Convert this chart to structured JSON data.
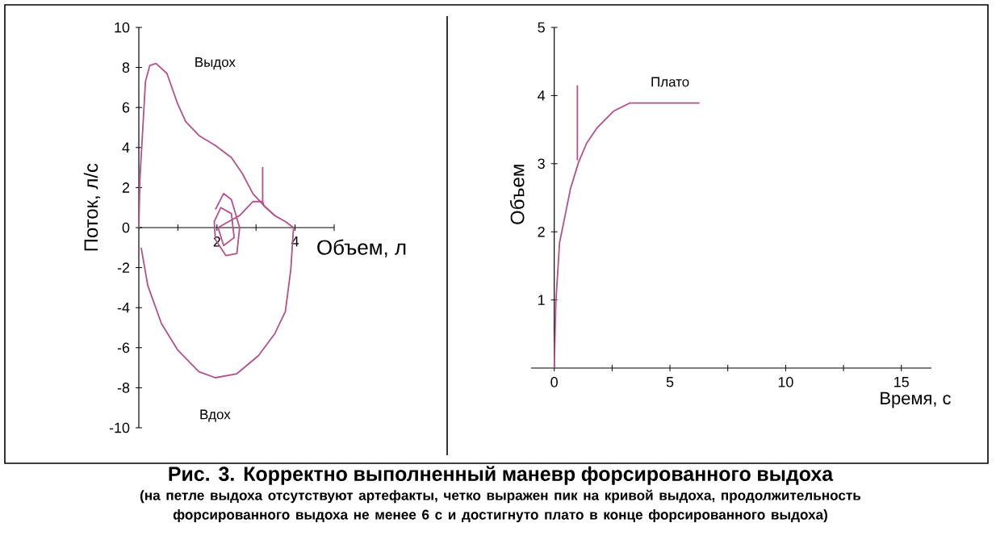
{
  "chart_data": [
    {
      "type": "line",
      "title": "Рис. 3. Корректно выполненный маневр форсированного выдоха",
      "subtitle": "(на петле выдоха отсутствуют артефакты, четко выражен пик на кривой выдоха, продолжительность форсированного выдоха не менее 6 с и достигнуто плато в конце форсированного выдоха)",
      "xlabel": "Объем, л",
      "ylabel": "Поток, л/с",
      "xlim": [
        0,
        5
      ],
      "ylim": [
        -10,
        10
      ],
      "xticks": [
        {
          "value": 1,
          "label": null
        },
        2,
        {
          "value": 3,
          "label": null
        },
        4,
        {
          "value": 5,
          "label": null
        }
      ],
      "yticks": [
        -10,
        -8,
        -6,
        -4,
        -2,
        0,
        2,
        4,
        6,
        8,
        10
      ],
      "annotations": [
        "Выдох",
        "Вдох"
      ],
      "series": [
        {
          "color": "#b4508c",
          "x": [
            0,
            0.03,
            0.17,
            0.28,
            0.44,
            0.72,
            0.99,
            1.2,
            1.54,
            1.96,
            2.37,
            2.65,
            2.92,
            3.2,
            3.48,
            3.75,
            3.96,
            3.89,
            3.75,
            3.48,
            3.06,
            2.51,
            1.96,
            1.54,
            0.99,
            0.58,
            0.23,
            0.06
          ],
          "values": [
            0,
            2.5,
            7.3,
            8.1,
            8.2,
            7.7,
            6.2,
            5.3,
            4.6,
            4.1,
            3.5,
            2.7,
            1.7,
            1.1,
            0.6,
            0.3,
            0,
            -2.1,
            -4.2,
            -5.3,
            -6.4,
            -7.3,
            -7.5,
            -7.2,
            -6.1,
            -4.8,
            -2.9,
            -1.0
          ]
        },
        {
          "color": "#b4508c",
          "x": [
            1.96,
            2.17,
            2.37,
            2.58,
            2.51,
            2.23,
            1.96,
            1.93,
            2.1,
            2.37,
            2.44,
            2.17,
            2.03,
            2.3,
            2.58,
            2.92,
            3.17,
            3.17,
            3.17,
            3.2,
            3.48
          ],
          "values": [
            0.9,
            1.7,
            1.4,
            0,
            -1.3,
            -1.4,
            -0.6,
            0.3,
            1.0,
            0.7,
            -0.5,
            -0.9,
            0,
            0.3,
            0.6,
            1.3,
            1.3,
            3.0,
            1.3,
            1.1,
            0.6
          ]
        }
      ]
    },
    {
      "type": "line",
      "xlabel": "Время, с",
      "ylabel": "Объем",
      "xlim": [
        -1,
        16.3
      ],
      "ylim": [
        0,
        5
      ],
      "xticks": [
        0,
        {
          "value": 2.5,
          "label": null
        },
        5,
        {
          "value": 7.5,
          "label": null
        },
        10,
        {
          "value": 12.5,
          "label": null
        },
        15
      ],
      "yticks": [
        1,
        2,
        3,
        4,
        5
      ],
      "annotations": [
        "Плато"
      ],
      "series": [
        {
          "color": "#b4508c",
          "x": [
            0,
            0.07,
            0.23,
            0.47,
            0.7,
            1.05,
            1.4,
            1.86,
            2.56,
            3.26,
            6.28
          ],
          "values": [
            0,
            0.97,
            1.84,
            2.24,
            2.63,
            3.02,
            3.3,
            3.53,
            3.77,
            3.89,
            3.89
          ]
        },
        {
          "color": "#b4508c",
          "x": [
            1.0,
            1.0
          ],
          "values": [
            3.05,
            4.15
          ]
        }
      ]
    }
  ]
}
